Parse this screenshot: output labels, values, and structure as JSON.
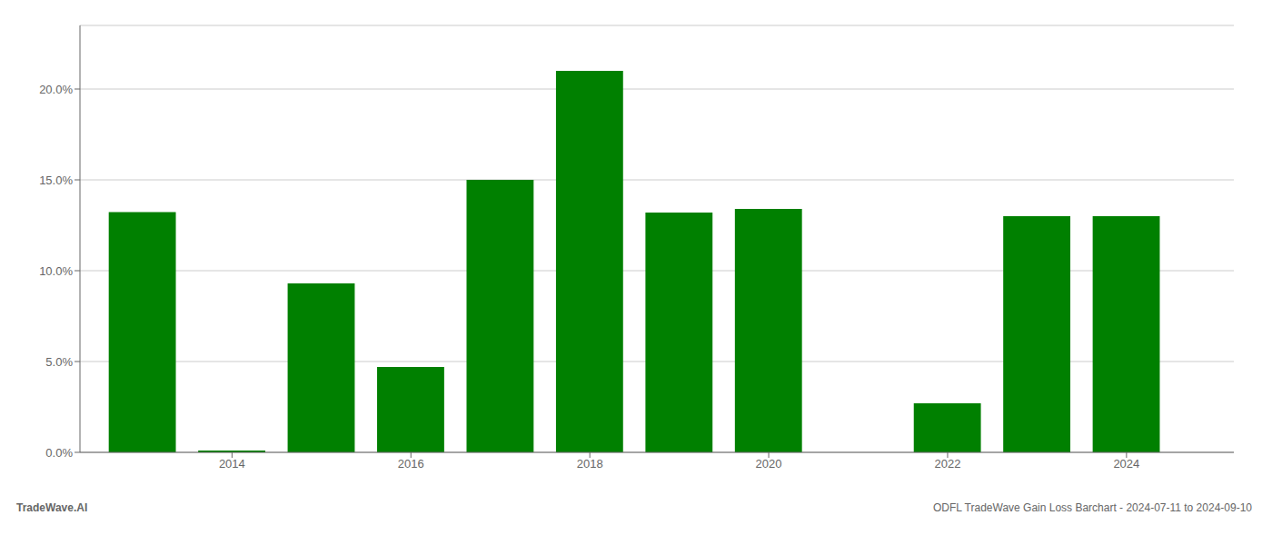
{
  "chart_data": {
    "type": "bar",
    "x": [
      2013,
      2014,
      2015,
      2016,
      2017,
      2018,
      2019,
      2020,
      2021,
      2022,
      2023,
      2024
    ],
    "values": [
      0.1323,
      0.001,
      0.093,
      0.047,
      0.15,
      0.21,
      0.132,
      0.134,
      0.0,
      0.027,
      0.13,
      0.13
    ],
    "color": "#008000",
    "xlim": [
      2012.3,
      2025.2
    ],
    "xticks": [
      2014,
      2016,
      2018,
      2020,
      2022,
      2024
    ],
    "ylim": [
      0,
      0.235
    ],
    "yticks": [
      {
        "value": 0.0,
        "label": "0.0%"
      },
      {
        "value": 0.05,
        "label": "5.0%"
      },
      {
        "value": 0.1,
        "label": "10.0%"
      },
      {
        "value": 0.15,
        "label": "15.0%"
      },
      {
        "value": 0.2,
        "label": "20.0%"
      }
    ],
    "grid": true,
    "annotations": [
      "TradeWave.AI",
      "ODFL TradeWave Gain Loss Barchart - 2024-07-11 to 2024-09-10"
    ]
  }
}
